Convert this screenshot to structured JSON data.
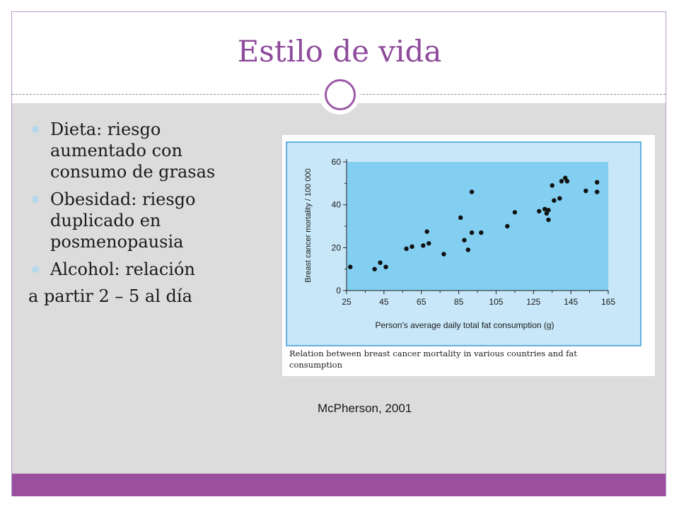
{
  "slide": {
    "title": "Estilo de vida",
    "bullets": [
      "Dieta: riesgo aumentado con consumo de grasas",
      "Obesidad: riesgo duplicado en posmenopausia",
      "Alcohol: relación"
    ],
    "continuation": "a partir 2 – 5 al día",
    "source": "McPherson, 2001"
  },
  "figure": {
    "caption": "Relation between breast cancer mortality in various countries and fat consumption"
  },
  "colors": {
    "title": "#8e4a9b",
    "accent_bar": "#9b4f9f",
    "panel_bg": "#dcdcdc",
    "bullet": "#b6d8ea",
    "plot_outer": "#c8e7f8",
    "plot_inner": "#82cff1"
  },
  "chart_data": {
    "type": "scatter",
    "xlabel": "Person's average daily total fat consumption (g)",
    "ylabel": "Breast cancer mortality / 100 000",
    "xlim": [
      25,
      165
    ],
    "ylim": [
      0,
      60
    ],
    "xticks": [
      25,
      45,
      65,
      85,
      105,
      125,
      145,
      165
    ],
    "yticks": [
      0,
      20,
      40,
      60
    ],
    "grid": false,
    "points": [
      {
        "x": 27,
        "y": 11
      },
      {
        "x": 40,
        "y": 10
      },
      {
        "x": 43,
        "y": 13
      },
      {
        "x": 46,
        "y": 11
      },
      {
        "x": 57,
        "y": 19.5
      },
      {
        "x": 60,
        "y": 20.5
      },
      {
        "x": 66,
        "y": 21
      },
      {
        "x": 68,
        "y": 27.5
      },
      {
        "x": 69,
        "y": 22
      },
      {
        "x": 77,
        "y": 17
      },
      {
        "x": 86,
        "y": 34
      },
      {
        "x": 88,
        "y": 23.5
      },
      {
        "x": 90,
        "y": 19
      },
      {
        "x": 92,
        "y": 27
      },
      {
        "x": 92,
        "y": 46
      },
      {
        "x": 97,
        "y": 27
      },
      {
        "x": 111,
        "y": 30
      },
      {
        "x": 115,
        "y": 36.5
      },
      {
        "x": 128,
        "y": 37
      },
      {
        "x": 131,
        "y": 38
      },
      {
        "x": 132,
        "y": 36
      },
      {
        "x": 133,
        "y": 37.5
      },
      {
        "x": 133,
        "y": 33
      },
      {
        "x": 135,
        "y": 49
      },
      {
        "x": 136,
        "y": 42
      },
      {
        "x": 139,
        "y": 43
      },
      {
        "x": 140,
        "y": 51
      },
      {
        "x": 142,
        "y": 52.5
      },
      {
        "x": 143,
        "y": 51
      },
      {
        "x": 153,
        "y": 46.5
      },
      {
        "x": 159,
        "y": 46
      },
      {
        "x": 159,
        "y": 50.5
      }
    ]
  }
}
